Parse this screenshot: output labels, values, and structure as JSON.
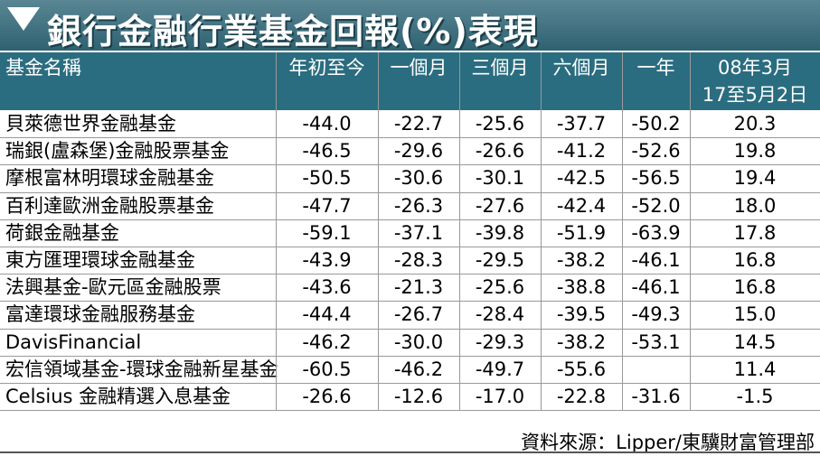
{
  "title": "銀行金融行業基金回報(%)表現",
  "table": {
    "header": [
      "基金名稱",
      "年初至今",
      "一個月",
      "三個月",
      "六個月",
      "一年",
      [
        "08年3月",
        "17至5月2日"
      ]
    ],
    "rows": [
      [
        "貝萊德世界金融基金",
        "-44.0",
        "-22.7",
        "-25.6",
        "-37.7",
        "-50.2",
        "20.3"
      ],
      [
        "瑞銀(盧森堡)金融股票基金",
        "-46.5",
        "-29.6",
        "-26.6",
        "-41.2",
        "-52.6",
        "19.8"
      ],
      [
        "摩根富林明環球金融基金",
        "-50.5",
        "-30.6",
        "-30.1",
        "-42.5",
        "-56.5",
        "19.4"
      ],
      [
        "百利達歐洲金融股票基金",
        "-47.7",
        "-26.3",
        "-27.6",
        "-42.4",
        "-52.0",
        "18.0"
      ],
      [
        "荷銀金融基金",
        "-59.1",
        "-37.1",
        "-39.8",
        "-51.9",
        "-63.9",
        "17.8"
      ],
      [
        "東方匯理環球金融基金",
        "-43.9",
        "-28.3",
        "-29.5",
        "-38.2",
        "-46.1",
        "16.8"
      ],
      [
        "法興基金-歐元區金融股票",
        "-43.6",
        "-21.3",
        "-25.6",
        "-38.8",
        "-46.1",
        "16.8"
      ],
      [
        "富達環球金融服務基金",
        "-44.4",
        "-26.7",
        "-28.4",
        "-39.5",
        "-49.3",
        "15.0"
      ],
      [
        "DavisFinancial",
        "-46.2",
        "-30.0",
        "-29.3",
        "-38.2",
        "-53.1",
        "14.5"
      ],
      [
        "宏信領域基金-環球金融新星基金",
        "-60.5",
        "-46.2",
        "-49.7",
        "-55.6",
        null,
        "11.4"
      ],
      [
        "Celsius 金融精選入息基金",
        "-26.6",
        "-12.6",
        "-17.0",
        "-22.8",
        "-31.6",
        "-1.5"
      ]
    ]
  },
  "source": "資料來源：Lipper/東驥財富管理部"
}
